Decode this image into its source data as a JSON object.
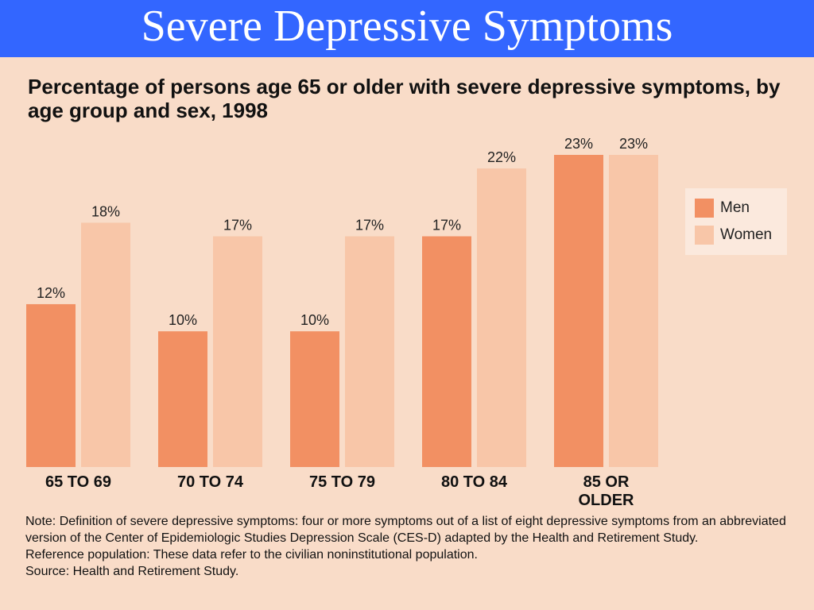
{
  "slide": {
    "title": "Severe Depressive Symptoms"
  },
  "chart_data": {
    "type": "bar",
    "title": "Percentage of persons age 65 or older with severe depressive symptoms, by age group and sex, 1998",
    "categories": [
      "65 TO 69",
      "70 TO 74",
      "75 TO 79",
      "80 TO 84",
      "85 OR\nOLDER"
    ],
    "series": [
      {
        "name": "Men",
        "values": [
          12,
          10,
          10,
          17,
          23
        ],
        "labels": [
          "12%",
          "10%",
          "10%",
          "17%",
          "23%"
        ],
        "color": "#f29063"
      },
      {
        "name": "Women",
        "values": [
          18,
          17,
          17,
          22,
          23
        ],
        "labels": [
          "18%",
          "17%",
          "17%",
          "22%",
          "23%"
        ],
        "color": "#f8c6a8"
      }
    ],
    "ylim": [
      0,
      23
    ],
    "grid": false,
    "legend_position": "right"
  },
  "notes": {
    "definition": "Note: Definition of severe depressive symptoms: four or more symptoms out of a list of eight depressive symptoms from an abbreviated version of the Center of Epidemiologic Studies Depression Scale (CES-D) adapted by the Health and Retirement Study.",
    "reference": "Reference population: These data refer to the civilian noninstitutional population.",
    "source": "Source: Health and Retirement Study."
  },
  "colors": {
    "header": "#3366ff",
    "background": "#f9dcc8",
    "men": "#f29063",
    "women": "#f8c6a8"
  }
}
